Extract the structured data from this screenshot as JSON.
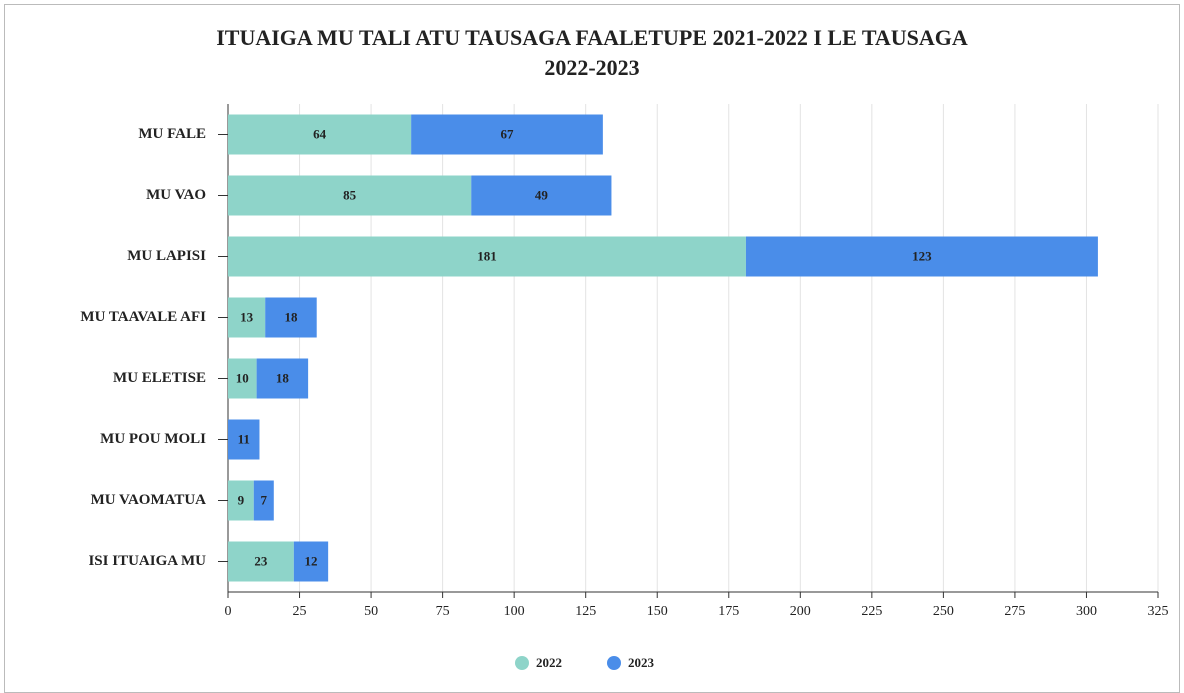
{
  "chart_data": {
    "type": "stacked_barh",
    "title": [
      "ITUAIGA MU TALI ATU TAUSAGA FAALETUPE 2021-2022 I LE TAUSAGA",
      "2022-2023"
    ],
    "categories": [
      "MU FALE",
      "MU VAO",
      "MU LAPISI",
      "MU TAAVALE AFI",
      "MU ELETISE",
      "MU POU MOLI",
      "MU VAOMATUA",
      "ISI ITUAIGA MU"
    ],
    "series": [
      {
        "name": "2022",
        "color": "#8ed4c9",
        "values": [
          64,
          85,
          181,
          13,
          10,
          null,
          9,
          23
        ]
      },
      {
        "name": "2023",
        "color": "#4a8de9",
        "values": [
          67,
          49,
          123,
          18,
          18,
          11,
          7,
          12
        ]
      }
    ],
    "xlim": [
      0,
      325
    ],
    "xticks": [
      0,
      25,
      50,
      75,
      100,
      125,
      150,
      175,
      200,
      225,
      250,
      275,
      300,
      325
    ],
    "grid": true
  }
}
